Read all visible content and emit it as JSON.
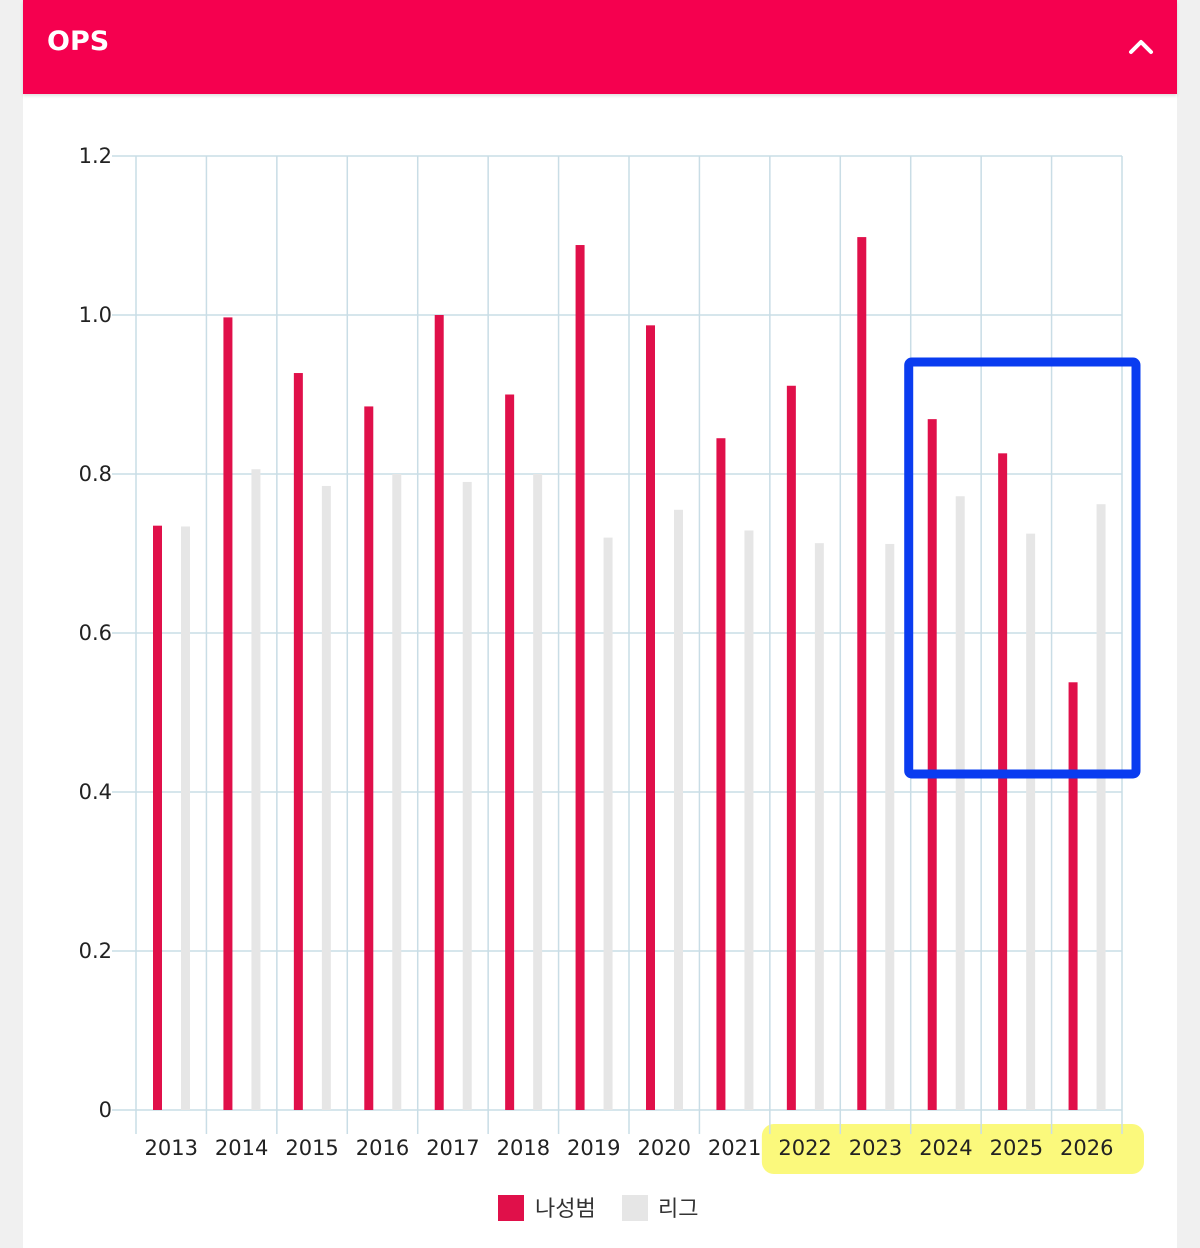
{
  "panel": {
    "title": "OPS",
    "toggle_icon": "chevron-up-icon"
  },
  "colors": {
    "player": "#e0104a",
    "league": "#e6e6e6",
    "grid": "#c9dde6",
    "header": "#f5004f",
    "year_highlight": "#fbf97c",
    "highlight_box": "#0a3cf0"
  },
  "chart_data": {
    "type": "bar",
    "categories": [
      "2013",
      "2014",
      "2015",
      "2016",
      "2017",
      "2018",
      "2019",
      "2020",
      "2021",
      "2022",
      "2023",
      "2024",
      "2025",
      "2026"
    ],
    "series": [
      {
        "name": "나성범",
        "values": [
          0.735,
          0.997,
          0.927,
          0.885,
          1.0,
          0.9,
          1.088,
          0.987,
          0.845,
          0.911,
          1.098,
          0.869,
          0.826,
          0.538
        ]
      },
      {
        "name": "리그",
        "values": [
          0.734,
          0.806,
          0.785,
          0.8,
          0.79,
          0.8,
          0.72,
          0.755,
          0.729,
          0.713,
          0.712,
          0.772,
          0.725,
          0.762
        ]
      }
    ],
    "y_ticks": [
      "0",
      "0.2",
      "0.4",
      "0.6",
      "0.8",
      "1.0",
      "1.2"
    ],
    "ylim": [
      0,
      1.2
    ],
    "grid": true,
    "legend_position": "bottom",
    "highlighted_categories": [
      "2022",
      "2023",
      "2024",
      "2025",
      "2026"
    ],
    "boxed_categories": [
      "2024",
      "2025",
      "2026"
    ]
  }
}
